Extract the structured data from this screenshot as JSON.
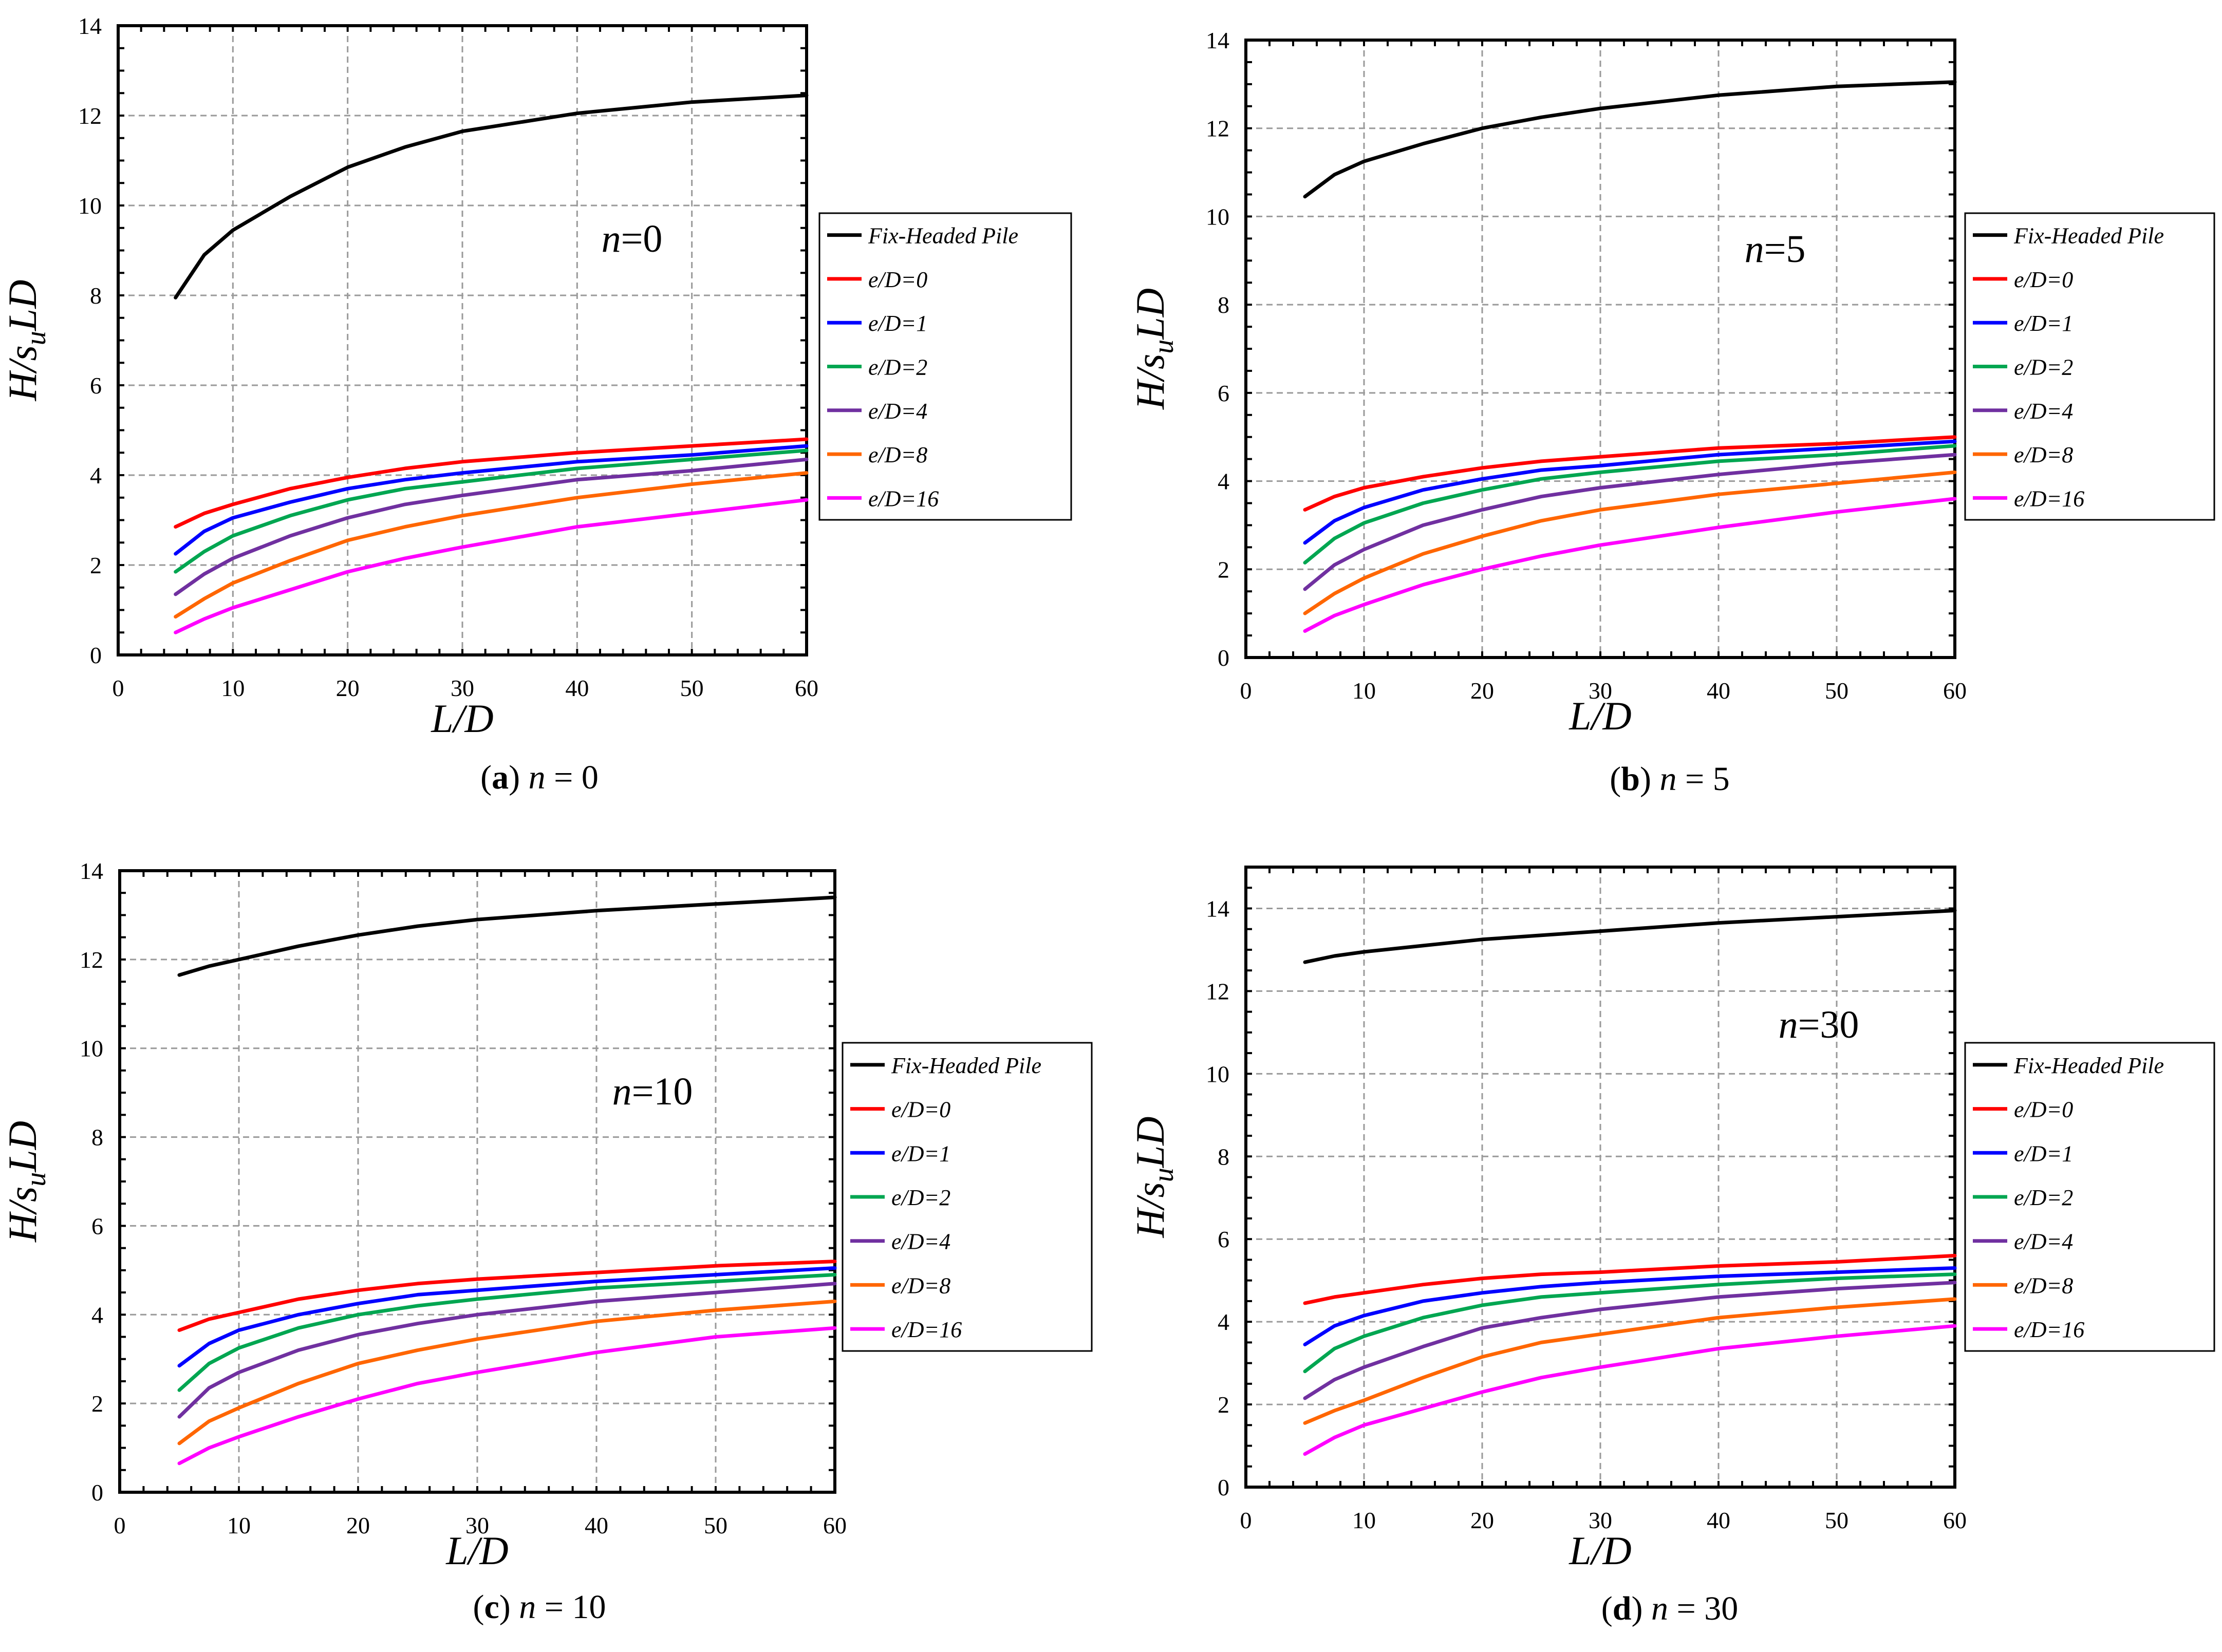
{
  "legend_entries": [
    "Fix-Headed Pile",
    "e/D=0",
    "e/D=1",
    "e/D=2",
    "e/D=4",
    "e/D=8",
    "e/D=16"
  ],
  "series_colors": [
    "#000000",
    "#ff0000",
    "#0000ff",
    "#00a651",
    "#7030a0",
    "#ff6600",
    "#ff00ff"
  ],
  "chart_data": [
    {
      "type": "line",
      "panel": "a",
      "title": "n=0",
      "caption": {
        "letter": "a",
        "text": "n = 0"
      },
      "xlabel": "L/D",
      "ylabel": "H/suLD",
      "xlim": [
        0,
        60
      ],
      "ylim": [
        0,
        14
      ],
      "x_ticks": [
        0,
        10,
        20,
        30,
        40,
        50,
        60
      ],
      "y_ticks": [
        0,
        2,
        4,
        6,
        8,
        10,
        12,
        14
      ],
      "grid": true,
      "x": [
        5,
        7.5,
        10,
        15,
        20,
        25,
        30,
        40,
        50,
        60
      ],
      "series": [
        {
          "name": "Fix-Headed Pile",
          "values": [
            7.95,
            8.9,
            9.45,
            10.2,
            10.85,
            11.3,
            11.65,
            12.05,
            12.3,
            12.45
          ]
        },
        {
          "name": "e/D=0",
          "values": [
            2.85,
            3.15,
            3.35,
            3.7,
            3.95,
            4.15,
            4.3,
            4.5,
            4.65,
            4.8
          ]
        },
        {
          "name": "e/D=1",
          "values": [
            2.25,
            2.75,
            3.05,
            3.4,
            3.7,
            3.9,
            4.05,
            4.3,
            4.45,
            4.65
          ]
        },
        {
          "name": "e/D=2",
          "values": [
            1.85,
            2.3,
            2.65,
            3.1,
            3.45,
            3.7,
            3.85,
            4.15,
            4.35,
            4.55
          ]
        },
        {
          "name": "e/D=4",
          "values": [
            1.35,
            1.8,
            2.15,
            2.65,
            3.05,
            3.35,
            3.55,
            3.9,
            4.1,
            4.35
          ]
        },
        {
          "name": "e/D=8",
          "values": [
            0.85,
            1.25,
            1.6,
            2.1,
            2.55,
            2.85,
            3.1,
            3.5,
            3.8,
            4.05
          ]
        },
        {
          "name": "e/D=16",
          "values": [
            0.5,
            0.8,
            1.05,
            1.45,
            1.85,
            2.15,
            2.4,
            2.85,
            3.15,
            3.45
          ]
        }
      ]
    },
    {
      "type": "line",
      "panel": "b",
      "title": "n=5",
      "caption": {
        "letter": "b",
        "text": "n = 5"
      },
      "xlabel": "L/D",
      "ylabel": "H/suLD",
      "xlim": [
        0,
        60
      ],
      "ylim": [
        0,
        14
      ],
      "x_ticks": [
        0,
        10,
        20,
        30,
        40,
        50,
        60
      ],
      "y_ticks": [
        0,
        2,
        4,
        6,
        8,
        10,
        12,
        14
      ],
      "grid": true,
      "x": [
        5,
        7.5,
        10,
        15,
        20,
        25,
        30,
        40,
        50,
        60
      ],
      "series": [
        {
          "name": "Fix-Headed Pile",
          "values": [
            10.45,
            10.95,
            11.25,
            11.65,
            12.0,
            12.25,
            12.45,
            12.75,
            12.95,
            13.05
          ]
        },
        {
          "name": "e/D=0",
          "values": [
            3.35,
            3.65,
            3.85,
            4.1,
            4.3,
            4.45,
            4.55,
            4.75,
            4.85,
            5.0
          ]
        },
        {
          "name": "e/D=1",
          "values": [
            2.6,
            3.1,
            3.4,
            3.8,
            4.05,
            4.25,
            4.35,
            4.6,
            4.75,
            4.9
          ]
        },
        {
          "name": "e/D=2",
          "values": [
            2.15,
            2.7,
            3.05,
            3.5,
            3.8,
            4.05,
            4.2,
            4.45,
            4.6,
            4.8
          ]
        },
        {
          "name": "e/D=4",
          "values": [
            1.55,
            2.1,
            2.45,
            3.0,
            3.35,
            3.65,
            3.85,
            4.15,
            4.4,
            4.6
          ]
        },
        {
          "name": "e/D=8",
          "values": [
            1.0,
            1.45,
            1.8,
            2.35,
            2.75,
            3.1,
            3.35,
            3.7,
            3.95,
            4.2
          ]
        },
        {
          "name": "e/D=16",
          "values": [
            0.6,
            0.95,
            1.2,
            1.65,
            2.0,
            2.3,
            2.55,
            2.95,
            3.3,
            3.6
          ]
        }
      ]
    },
    {
      "type": "line",
      "panel": "c",
      "title": "n=10",
      "caption": {
        "letter": "c",
        "text": "n = 10"
      },
      "xlabel": "L/D",
      "ylabel": "H/suLD",
      "xlim": [
        0,
        60
      ],
      "ylim": [
        0,
        14
      ],
      "x_ticks": [
        0,
        10,
        20,
        30,
        40,
        50,
        60
      ],
      "y_ticks": [
        0,
        2,
        4,
        6,
        8,
        10,
        12,
        14
      ],
      "grid": true,
      "x": [
        5,
        7.5,
        10,
        15,
        20,
        25,
        30,
        40,
        50,
        60
      ],
      "series": [
        {
          "name": "Fix-Headed Pile",
          "values": [
            11.65,
            11.85,
            12.0,
            12.3,
            12.55,
            12.75,
            12.9,
            13.1,
            13.25,
            13.4
          ]
        },
        {
          "name": "e/D=0",
          "values": [
            3.65,
            3.9,
            4.05,
            4.35,
            4.55,
            4.7,
            4.8,
            4.95,
            5.1,
            5.2
          ]
        },
        {
          "name": "e/D=1",
          "values": [
            2.85,
            3.35,
            3.65,
            4.0,
            4.25,
            4.45,
            4.55,
            4.75,
            4.9,
            5.05
          ]
        },
        {
          "name": "e/D=2",
          "values": [
            2.3,
            2.9,
            3.25,
            3.7,
            4.0,
            4.2,
            4.35,
            4.6,
            4.75,
            4.9
          ]
        },
        {
          "name": "e/D=4",
          "values": [
            1.7,
            2.35,
            2.7,
            3.2,
            3.55,
            3.8,
            4.0,
            4.3,
            4.5,
            4.7
          ]
        },
        {
          "name": "e/D=8",
          "values": [
            1.1,
            1.6,
            1.9,
            2.45,
            2.9,
            3.2,
            3.45,
            3.85,
            4.1,
            4.3
          ]
        },
        {
          "name": "e/D=16",
          "values": [
            0.65,
            1.0,
            1.25,
            1.7,
            2.1,
            2.45,
            2.7,
            3.15,
            3.5,
            3.7
          ]
        }
      ]
    },
    {
      "type": "line",
      "panel": "d",
      "title": "n=30",
      "caption": {
        "letter": "d",
        "text": "n = 30"
      },
      "xlabel": "L/D",
      "ylabel": "H/suLD",
      "xlim": [
        0,
        60
      ],
      "ylim": [
        0,
        15
      ],
      "x_ticks": [
        0,
        10,
        20,
        30,
        40,
        50,
        60
      ],
      "y_ticks": [
        0,
        2,
        4,
        6,
        8,
        10,
        12,
        14
      ],
      "grid": true,
      "x": [
        5,
        7.5,
        10,
        15,
        20,
        25,
        30,
        40,
        50,
        60
      ],
      "series": [
        {
          "name": "Fix-Headed Pile",
          "values": [
            12.7,
            12.85,
            12.95,
            13.1,
            13.25,
            13.35,
            13.45,
            13.65,
            13.8,
            13.95
          ]
        },
        {
          "name": "e/D=0",
          "values": [
            4.45,
            4.6,
            4.7,
            4.9,
            5.05,
            5.15,
            5.2,
            5.35,
            5.45,
            5.6
          ]
        },
        {
          "name": "e/D=1",
          "values": [
            3.45,
            3.9,
            4.15,
            4.5,
            4.7,
            4.85,
            4.95,
            5.1,
            5.2,
            5.3
          ]
        },
        {
          "name": "e/D=2",
          "values": [
            2.8,
            3.35,
            3.65,
            4.1,
            4.4,
            4.6,
            4.7,
            4.9,
            5.05,
            5.15
          ]
        },
        {
          "name": "e/D=4",
          "values": [
            2.15,
            2.6,
            2.9,
            3.4,
            3.85,
            4.1,
            4.3,
            4.6,
            4.8,
            4.95
          ]
        },
        {
          "name": "e/D=8",
          "values": [
            1.55,
            1.85,
            2.1,
            2.65,
            3.15,
            3.5,
            3.7,
            4.1,
            4.35,
            4.55
          ]
        },
        {
          "name": "e/D=16",
          "values": [
            0.8,
            1.2,
            1.5,
            1.9,
            2.3,
            2.65,
            2.9,
            3.35,
            3.65,
            3.9
          ]
        }
      ]
    }
  ]
}
